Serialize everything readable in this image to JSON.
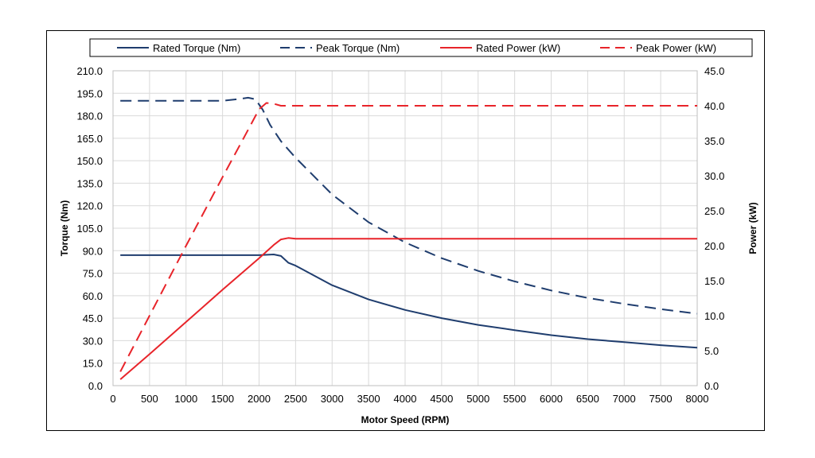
{
  "chart_data": {
    "type": "line",
    "xlabel": "Motor Speed (RPM)",
    "ylabel_left": "Torque (Nm)",
    "ylabel_right": "Power (kW)",
    "xlim": [
      0,
      8000
    ],
    "ylim_left": [
      0,
      210
    ],
    "ylim_right": [
      0,
      45
    ],
    "x_ticks": [
      "0",
      "500",
      "1000",
      "1500",
      "2000",
      "2500",
      "3000",
      "3500",
      "4000",
      "4500",
      "5000",
      "5500",
      "6000",
      "6500",
      "7000",
      "7500",
      "8000"
    ],
    "y_left_ticks": [
      "0.0",
      "15.0",
      "30.0",
      "45.0",
      "60.0",
      "75.0",
      "90.0",
      "105.0",
      "120.0",
      "135.0",
      "150.0",
      "165.0",
      "180.0",
      "195.0",
      "210.0"
    ],
    "y_right_ticks": [
      "0.0",
      "5.0",
      "10.0",
      "15.0",
      "20.0",
      "25.0",
      "30.0",
      "35.0",
      "40.0",
      "45.0"
    ],
    "grid": true,
    "legend_position": "top",
    "series": [
      {
        "name": "Rated Torque (Nm)",
        "axis": "left",
        "color": "#1f3d6e",
        "dash": "solid",
        "x": [
          100,
          500,
          1000,
          1500,
          2000,
          2200,
          2300,
          2400,
          2500,
          3000,
          3500,
          4000,
          4500,
          5000,
          5500,
          6000,
          6500,
          7000,
          7500,
          8000
        ],
        "y": [
          87,
          87,
          87,
          87,
          87,
          87.5,
          86.5,
          82,
          80,
          67,
          57.5,
          50.5,
          45,
          40.5,
          37,
          33.7,
          31,
          29,
          27,
          25.3
        ]
      },
      {
        "name": "Peak Torque (Nm)",
        "axis": "left",
        "color": "#1f3d6e",
        "dash": "dashed",
        "x": [
          100,
          500,
          1000,
          1500,
          1700,
          1850,
          1950,
          2050,
          2150,
          2300,
          2500,
          3000,
          3500,
          4000,
          4500,
          5000,
          5500,
          6000,
          6500,
          7000,
          7500,
          8000
        ],
        "y": [
          190,
          190,
          190,
          190,
          191,
          192,
          191,
          184,
          174,
          163,
          152,
          127.5,
          109,
          95.5,
          85,
          76.5,
          69.5,
          63.5,
          58.5,
          54.5,
          51,
          48
        ]
      },
      {
        "name": "Rated Power (kW)",
        "axis": "right",
        "color": "#e8242a",
        "dash": "solid",
        "x": [
          100,
          500,
          1000,
          1500,
          2000,
          2200,
          2300,
          2400,
          2500,
          3000,
          4000,
          5000,
          6000,
          7000,
          8000
        ],
        "y": [
          0.9,
          4.5,
          9.1,
          13.7,
          18.2,
          20.1,
          20.9,
          21.1,
          21.0,
          21.0,
          21.0,
          21.0,
          21.0,
          21.0,
          21.0
        ]
      },
      {
        "name": "Peak Power (kW)",
        "axis": "right",
        "color": "#e8242a",
        "dash": "dashed",
        "x": [
          100,
          500,
          1000,
          1500,
          1800,
          2000,
          2100,
          2200,
          2300,
          2500,
          3000,
          4000,
          5000,
          6000,
          7000,
          8000
        ],
        "y": [
          2.0,
          10.0,
          20.0,
          29.8,
          35.6,
          39.5,
          40.4,
          40.3,
          40.0,
          40.0,
          40.0,
          40.0,
          40.0,
          40.0,
          40.0,
          40.0
        ]
      }
    ]
  }
}
